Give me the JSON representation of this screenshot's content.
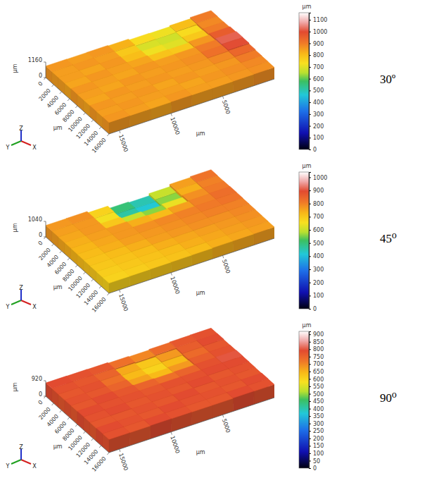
{
  "chart_data": [
    {
      "type": "surface",
      "annotation": "30º",
      "x_label": "μm",
      "y_label": "μm",
      "z_label": "μm",
      "axes_labels": [
        "X",
        "Y",
        "Z"
      ],
      "xlim": [
        0,
        16000
      ],
      "xticks": [
        0,
        2000,
        4000,
        6000,
        8000,
        10000,
        12000,
        14000,
        16000
      ],
      "ylim": [
        0,
        16000
      ],
      "yticks": [
        5000,
        10000,
        15000
      ],
      "zlim": [
        0,
        1160
      ],
      "zticks": [
        0,
        1160
      ],
      "cells": [
        [
          900,
          880,
          900,
          960,
          1020,
          1000,
          940,
          900,
          880,
          870
        ],
        [
          800,
          740,
          780,
          860,
          900,
          920,
          880,
          860,
          870,
          860
        ],
        [
          720,
          680,
          700,
          780,
          860,
          870,
          860,
          850,
          860,
          850
        ],
        [
          740,
          690,
          720,
          790,
          850,
          860,
          850,
          860,
          840,
          850
        ],
        [
          820,
          780,
          800,
          840,
          860,
          850,
          860,
          840,
          850,
          860
        ],
        [
          860,
          850,
          860,
          850,
          840,
          860,
          850,
          860,
          850,
          840
        ],
        [
          850,
          860,
          840,
          860,
          850,
          840,
          860,
          850,
          860,
          850
        ],
        [
          860,
          850,
          850,
          840,
          860,
          850,
          840,
          860,
          850,
          860
        ]
      ],
      "colorbar": {
        "label": "μm",
        "range": [
          0,
          1160
        ],
        "ticks": [
          0,
          100,
          200,
          300,
          400,
          500,
          600,
          700,
          800,
          900,
          1000,
          1100
        ]
      }
    },
    {
      "type": "surface",
      "annotation": "45⁰",
      "x_label": "μm",
      "y_label": "μm",
      "z_label": "μm",
      "axes_labels": [
        "X",
        "Y",
        "Z"
      ],
      "xlim": [
        0,
        16000
      ],
      "xticks": [
        0,
        2000,
        4000,
        6000,
        8000,
        10000,
        12000,
        14000,
        16000
      ],
      "ylim": [
        0,
        16000
      ],
      "yticks": [
        5000,
        10000,
        15000
      ],
      "zlim": [
        0,
        1040
      ],
      "zticks": [
        0,
        1040
      ],
      "cells": [
        [
          820,
          800,
          810,
          830,
          820,
          800,
          790,
          780,
          770,
          760
        ],
        [
          760,
          740,
          780,
          800,
          810,
          800,
          780,
          770,
          760,
          750
        ],
        [
          600,
          560,
          640,
          760,
          800,
          790,
          780,
          760,
          750,
          740
        ],
        [
          450,
          420,
          560,
          720,
          790,
          780,
          770,
          750,
          740,
          720
        ],
        [
          500,
          460,
          600,
          740,
          780,
          770,
          760,
          740,
          720,
          710
        ],
        [
          680,
          650,
          700,
          770,
          770,
          760,
          740,
          720,
          710,
          700
        ],
        [
          780,
          770,
          770,
          760,
          750,
          740,
          720,
          710,
          700,
          690
        ],
        [
          770,
          760,
          750,
          740,
          730,
          720,
          710,
          700,
          690,
          680
        ]
      ],
      "colorbar": {
        "label": "μm",
        "range": [
          0,
          1040
        ],
        "ticks": [
          0,
          100,
          200,
          300,
          400,
          500,
          600,
          700,
          800,
          900,
          1000
        ]
      }
    },
    {
      "type": "surface",
      "annotation": "90⁰",
      "x_label": "μm",
      "y_label": "μm",
      "z_label": "μm",
      "axes_labels": [
        "X",
        "Y",
        "Z"
      ],
      "xlim": [
        0,
        16000
      ],
      "xticks": [
        0,
        2000,
        4000,
        6000,
        8000,
        10000,
        12000,
        14000,
        16000
      ],
      "ylim": [
        0,
        16000
      ],
      "yticks": [
        5000,
        10000,
        15000
      ],
      "zlim": [
        0,
        920
      ],
      "zticks": [
        0,
        920
      ],
      "cells": [
        [
          780,
          790,
          770,
          780,
          800,
          790,
          780,
          770,
          790,
          780
        ],
        [
          770,
          760,
          740,
          760,
          780,
          790,
          770,
          780,
          770,
          790
        ],
        [
          740,
          680,
          640,
          680,
          750,
          780,
          790,
          770,
          780,
          770
        ],
        [
          700,
          620,
          600,
          640,
          730,
          780,
          770,
          790,
          780,
          770
        ],
        [
          730,
          660,
          640,
          670,
          750,
          770,
          780,
          770,
          790,
          780
        ],
        [
          770,
          750,
          730,
          750,
          770,
          780,
          770,
          780,
          770,
          790
        ],
        [
          780,
          770,
          780,
          770,
          790,
          780,
          790,
          770,
          780,
          770
        ],
        [
          790,
          780,
          770,
          780,
          770,
          790,
          780,
          770,
          790,
          780
        ]
      ],
      "colorbar": {
        "label": "μm",
        "range": [
          0,
          920
        ],
        "ticks": [
          0,
          50,
          100,
          150,
          200,
          250,
          300,
          350,
          400,
          450,
          500,
          550,
          600,
          650,
          700,
          750,
          800,
          850,
          900
        ]
      }
    }
  ]
}
